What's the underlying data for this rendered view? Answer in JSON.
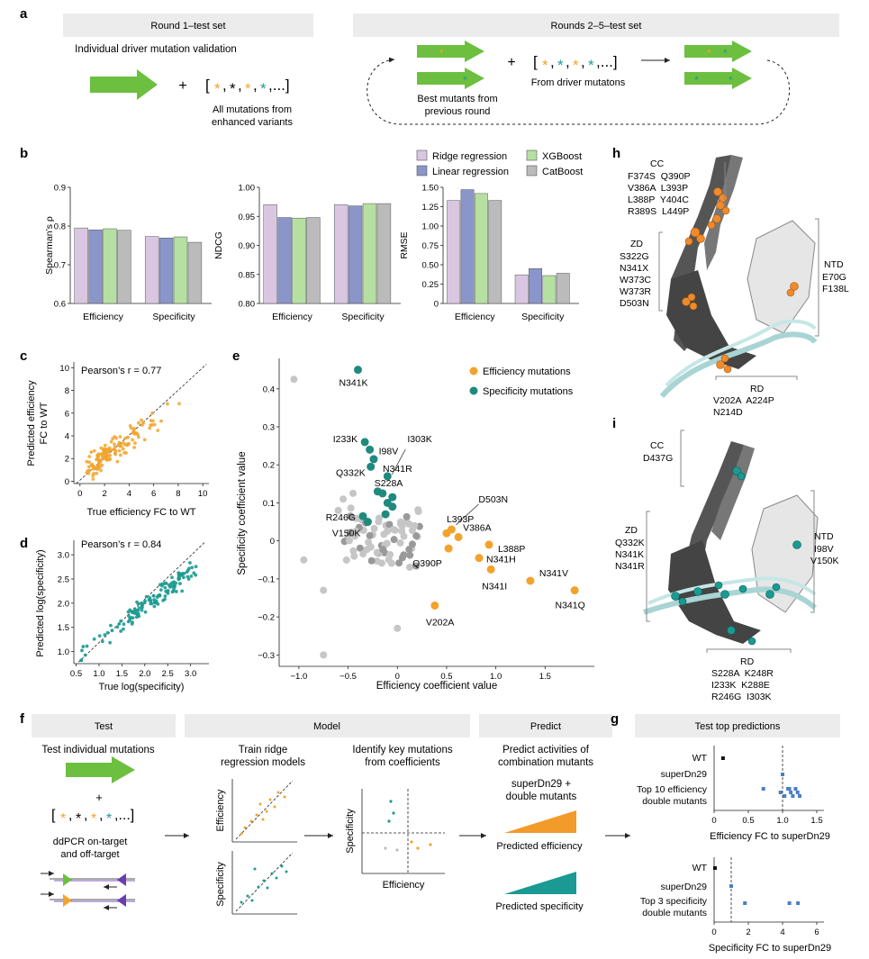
{
  "panels": {
    "a": {
      "label": "a",
      "round1_title": "Round 1–test set",
      "round1_subtitle": "Individual driver mutation validation",
      "round1_mut_caption_1": "All mutations from",
      "round1_mut_caption_2": "enhanced variants",
      "round25_title": "Rounds 2–5–test set",
      "round25_best_1": "Best mutants from",
      "round25_best_2": "previous round",
      "round25_driver": "From driver mutatons",
      "plus": "+"
    },
    "b": {
      "label": "b",
      "legend": [
        "Ridge regression",
        "Linear regression",
        "XGBoost",
        "CatBoost"
      ]
    },
    "c": {
      "label": "c",
      "pearson": "Pearson’s r = 0.77"
    },
    "d": {
      "label": "d",
      "pearson": "Pearson’s r = 0.84"
    },
    "e": {
      "label": "e",
      "legend_eff": "Efficiency mutations",
      "legend_spec": "Specificity mutations"
    },
    "f": {
      "label": "f",
      "test_header": "Test",
      "test_title": "Test individual mutations",
      "ddpcr_1": "ddPCR on-target",
      "ddpcr_2": "and off-target",
      "model_header": "Model",
      "train_1": "Train ridge",
      "train_2": "regression models",
      "identify_1": "Identify key mutations",
      "identify_2": "from coefficients",
      "mini_eff_y": "Efficiency",
      "mini_spec_y": "Specificity",
      "mini_spec_axis": "Specificity",
      "mini_eff_axis": "Efficiency",
      "predict_header": "Predict",
      "predict_1": "Predict activities of",
      "predict_2": "combination mutants",
      "superdn_1": "superDn29 +",
      "superdn_2": "double mutants",
      "pred_eff": "Predicted efficiency",
      "pred_spec": "Predicted specificity"
    },
    "g": {
      "label": "g",
      "header": "Test top predictions",
      "top_rows": [
        "WT",
        "superDn29",
        "Top 10 efficiency",
        "double mutants"
      ],
      "top_xlabel": "Efficiency FC to superDn29",
      "top_ticks": [
        "0",
        "0.5",
        "1.0",
        "1.5"
      ],
      "bot_rows": [
        "WT",
        "superDn29",
        "Top 3 specificity",
        "double mutants"
      ],
      "bot_xlabel": "Specificity FC to superDn29",
      "bot_ticks": [
        "0",
        "2",
        "4",
        "6"
      ]
    },
    "h": {
      "label": "h",
      "cc_title": "CC",
      "cc_rows": [
        "F374S  Q390P",
        "V386A  L393P",
        "L388P  Y404C",
        "R389S  L449P"
      ],
      "zd_title": "ZD",
      "zd_rows": [
        "S322G",
        "N341X",
        "W373C",
        "W373R",
        "D503N"
      ],
      "ntd_title": "NTD",
      "ntd_rows": [
        "E70G",
        "F138L"
      ],
      "rd_title": "RD",
      "rd_rows": [
        "V202A  A224P",
        "N214D"
      ]
    },
    "i": {
      "label": "i",
      "cc_title": "CC",
      "cc_rows": [
        "D437G"
      ],
      "zd_title": "ZD",
      "zd_rows": [
        "Q332K",
        "N341K",
        "N341R"
      ],
      "ntd_title": "NTD",
      "ntd_rows": [
        "I98V",
        "V150K"
      ],
      "rd_title": "RD",
      "rd_rows": [
        "S228A  K248R",
        "I233K  K288E",
        "R246G  I303K"
      ]
    }
  },
  "chart_data": [
    {
      "id": "b-spearman",
      "type": "bar",
      "categories": [
        "Efficiency",
        "Specificity"
      ],
      "series": [
        {
          "name": "Ridge regression",
          "values": [
            0.795,
            0.773
          ]
        },
        {
          "name": "Linear regression",
          "values": [
            0.79,
            0.769
          ]
        },
        {
          "name": "XGBoost",
          "values": [
            0.793,
            0.772
          ]
        },
        {
          "name": "CatBoost",
          "values": [
            0.789,
            0.758
          ]
        }
      ],
      "ylabel": "Spearman’s ρ",
      "ylim": [
        0.6,
        0.9
      ],
      "yticks": [
        "0.6",
        "0.7",
        "0.8",
        "0.9"
      ]
    },
    {
      "id": "b-ndcg",
      "type": "bar",
      "categories": [
        "Efficiency",
        "Specificity"
      ],
      "series": [
        {
          "name": "Ridge regression",
          "values": [
            0.97,
            0.97
          ]
        },
        {
          "name": "Linear regression",
          "values": [
            0.948,
            0.968
          ]
        },
        {
          "name": "XGBoost",
          "values": [
            0.947,
            0.972
          ]
        },
        {
          "name": "CatBoost",
          "values": [
            0.948,
            0.972
          ]
        }
      ],
      "ylabel": "NDCG",
      "ylim": [
        0.8,
        1.0
      ],
      "yticks": [
        "0.80",
        "0.85",
        "0.90",
        "0.95",
        "1.00"
      ]
    },
    {
      "id": "b-rmse",
      "type": "bar",
      "categories": [
        "Efficiency",
        "Specificity"
      ],
      "series": [
        {
          "name": "Ridge regression",
          "values": [
            1.33,
            0.37
          ]
        },
        {
          "name": "Linear regression",
          "values": [
            1.47,
            0.45
          ]
        },
        {
          "name": "XGBoost",
          "values": [
            1.42,
            0.36
          ]
        },
        {
          "name": "CatBoost",
          "values": [
            1.33,
            0.39
          ]
        }
      ],
      "ylabel": "RMSE",
      "ylim": [
        0,
        1.5
      ],
      "yticks": [
        "0",
        "0.25",
        "0.50",
        "0.75",
        "1.00",
        "1.25",
        "1.50"
      ]
    },
    {
      "id": "c-scatter",
      "type": "scatter",
      "xlabel": "True efficiency FC to WT",
      "ylabel_1": "Predicted efficiency",
      "ylabel_2": "FC to WT",
      "xlim": [
        -0.5,
        10.5
      ],
      "ylim": [
        -0.2,
        10.5
      ],
      "xticks": [
        "0",
        "2",
        "4",
        "6",
        "8",
        "10"
      ],
      "yticks": [
        "0",
        "2",
        "4",
        "6",
        "8",
        "10"
      ],
      "pearson_r": 0.77,
      "n_points": 130
    },
    {
      "id": "d-scatter",
      "type": "scatter",
      "xlabel": "True log(specificity)",
      "ylabel": "Predicted log(specificity)",
      "xlim": [
        0.45,
        3.4
      ],
      "ylim": [
        0.75,
        3.3
      ],
      "xticks": [
        "0.5",
        "1.0",
        "1.5",
        "2.0",
        "2.5",
        "3.0"
      ],
      "yticks": [
        "1.0",
        "1.5",
        "2.0",
        "2.5",
        "3.0"
      ],
      "pearson_r": 0.84,
      "n_points": 130
    },
    {
      "id": "e-coefficients",
      "type": "scatter",
      "xlabel": "Efficiency coefficient value",
      "ylabel": "Specificity coefficient value",
      "xlim": [
        -1.2,
        2.0
      ],
      "ylim": [
        -0.33,
        0.48
      ],
      "xticks": [
        "−1.0",
        "−0.5",
        "0",
        "0.5",
        "1.0",
        "1.5"
      ],
      "yticks": [
        "−0.3",
        "−0.2",
        "−0.1",
        "0",
        "0.1",
        "0.2",
        "0.3",
        "0.4"
      ],
      "efficiency_points": [
        {
          "label": "V202A",
          "x": 0.38,
          "y": -0.17
        },
        {
          "label": "N341Q",
          "x": 1.8,
          "y": -0.13
        },
        {
          "label": "N341V",
          "x": 1.35,
          "y": -0.105
        },
        {
          "label": "N341I",
          "x": 0.95,
          "y": -0.075
        },
        {
          "label": "N341H",
          "x": 0.83,
          "y": -0.045
        },
        {
          "label": "Q390P",
          "x": 0.52,
          "y": -0.02
        },
        {
          "label": "L388P",
          "x": 0.93,
          "y": -0.01
        },
        {
          "label": "V386A",
          "x": 0.62,
          "y": 0.01
        },
        {
          "label": "L393P",
          "x": 0.5,
          "y": 0.02
        },
        {
          "label": "D503N",
          "x": 0.55,
          "y": 0.03
        }
      ],
      "specificity_points": [
        {
          "label": "N341K",
          "x": -0.4,
          "y": 0.45
        },
        {
          "label": "I233K",
          "x": -0.33,
          "y": 0.26
        },
        {
          "label": "I98V",
          "x": -0.28,
          "y": 0.24
        },
        {
          "label": "N341R",
          "x": -0.24,
          "y": 0.215
        },
        {
          "label": "Q332K",
          "x": -0.27,
          "y": 0.195
        },
        {
          "label": "I303K",
          "x": -0.1,
          "y": 0.17
        },
        {
          "label": "S228A",
          "x": -0.05,
          "y": 0.115
        },
        {
          "label": "R246G",
          "x": -0.35,
          "y": 0.065
        },
        {
          "label": "V150K",
          "x": -0.3,
          "y": 0.05
        }
      ]
    }
  ]
}
